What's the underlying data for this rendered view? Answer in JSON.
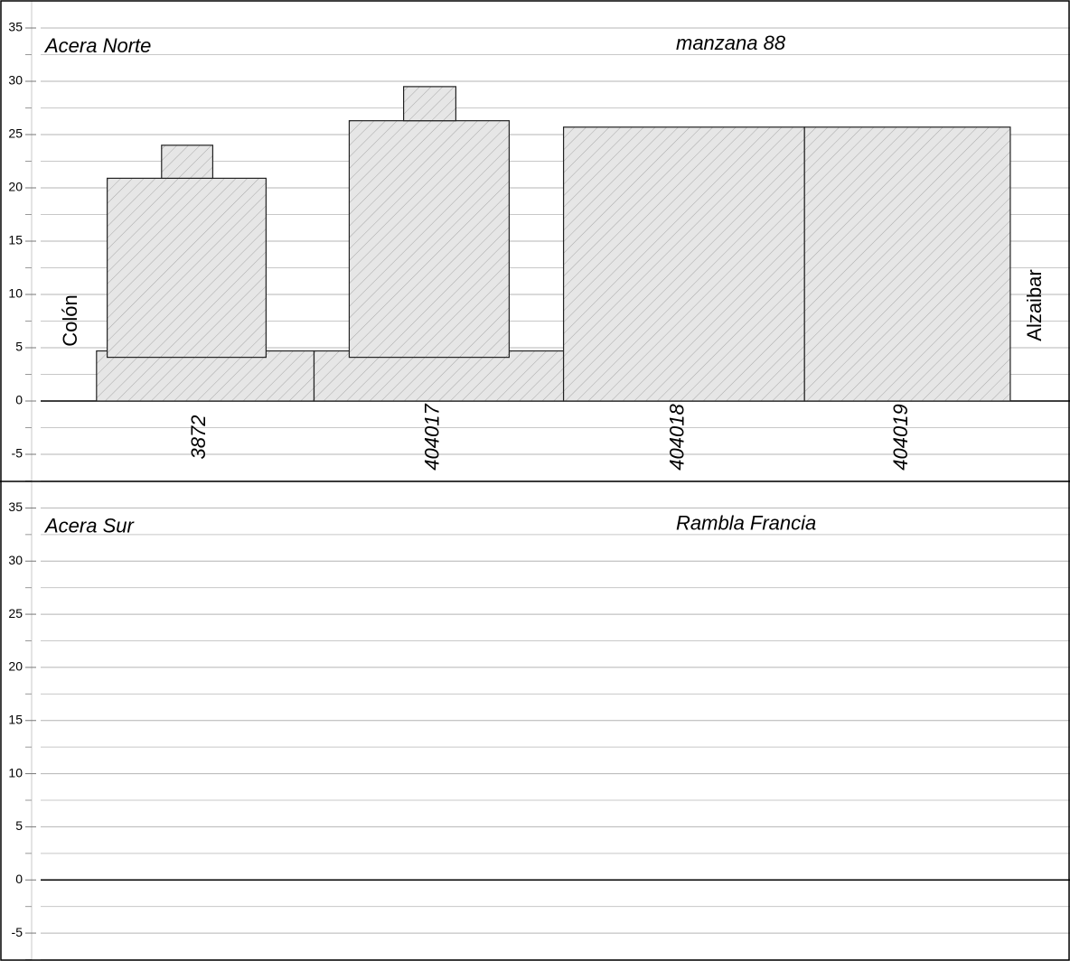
{
  "chart_data": [
    {
      "type": "elevation",
      "title": "Acera Norte",
      "subtitle": "manzana 88",
      "left_label": "Colón",
      "right_label": "Alzaibar",
      "xlim": [
        0,
        96.2
      ],
      "ylim": [
        -7.5,
        37.5
      ],
      "yticks": [
        -5,
        0,
        5,
        10,
        15,
        20,
        25,
        30,
        35
      ],
      "minor_yticks": [
        -7.5,
        -2.5,
        2.5,
        7.5,
        12.5,
        17.5,
        22.5,
        27.5,
        32.5
      ],
      "lots": [
        {
          "name": "3872",
          "blocks": [
            {
              "x": [
                4.9,
                25.3
              ],
              "y": [
                0,
                4.7
              ]
            },
            {
              "x": [
                5.9,
                20.8
              ],
              "y": [
                4.1,
                20.9
              ]
            },
            {
              "x": [
                11.0,
                15.8
              ],
              "y": [
                20.9,
                24.0
              ]
            }
          ]
        },
        {
          "name": "404017",
          "blocks": [
            {
              "x": [
                25.3,
                48.7
              ],
              "y": [
                0,
                4.7
              ]
            },
            {
              "x": [
                28.6,
                43.6
              ],
              "y": [
                4.1,
                26.3
              ]
            },
            {
              "x": [
                33.7,
                38.6
              ],
              "y": [
                26.3,
                29.5
              ]
            }
          ]
        },
        {
          "name": "404018",
          "blocks": [
            {
              "x": [
                48.7,
                71.3
              ],
              "y": [
                0,
                25.7
              ]
            }
          ]
        },
        {
          "name": "404019",
          "blocks": [
            {
              "x": [
                71.3,
                90.6
              ],
              "y": [
                0,
                25.7
              ]
            }
          ]
        }
      ]
    },
    {
      "type": "elevation",
      "title": "Acera Sur",
      "subtitle": "Rambla Francia",
      "xlim": [
        0,
        96.2
      ],
      "ylim": [
        -7.5,
        37.5
      ],
      "yticks": [
        -5,
        0,
        5,
        10,
        15,
        20,
        25,
        30,
        35
      ],
      "minor_yticks": [
        -7.5,
        -2.5,
        2.5,
        7.5,
        12.5,
        17.5,
        22.5,
        27.5,
        32.5
      ],
      "lots": []
    }
  ]
}
